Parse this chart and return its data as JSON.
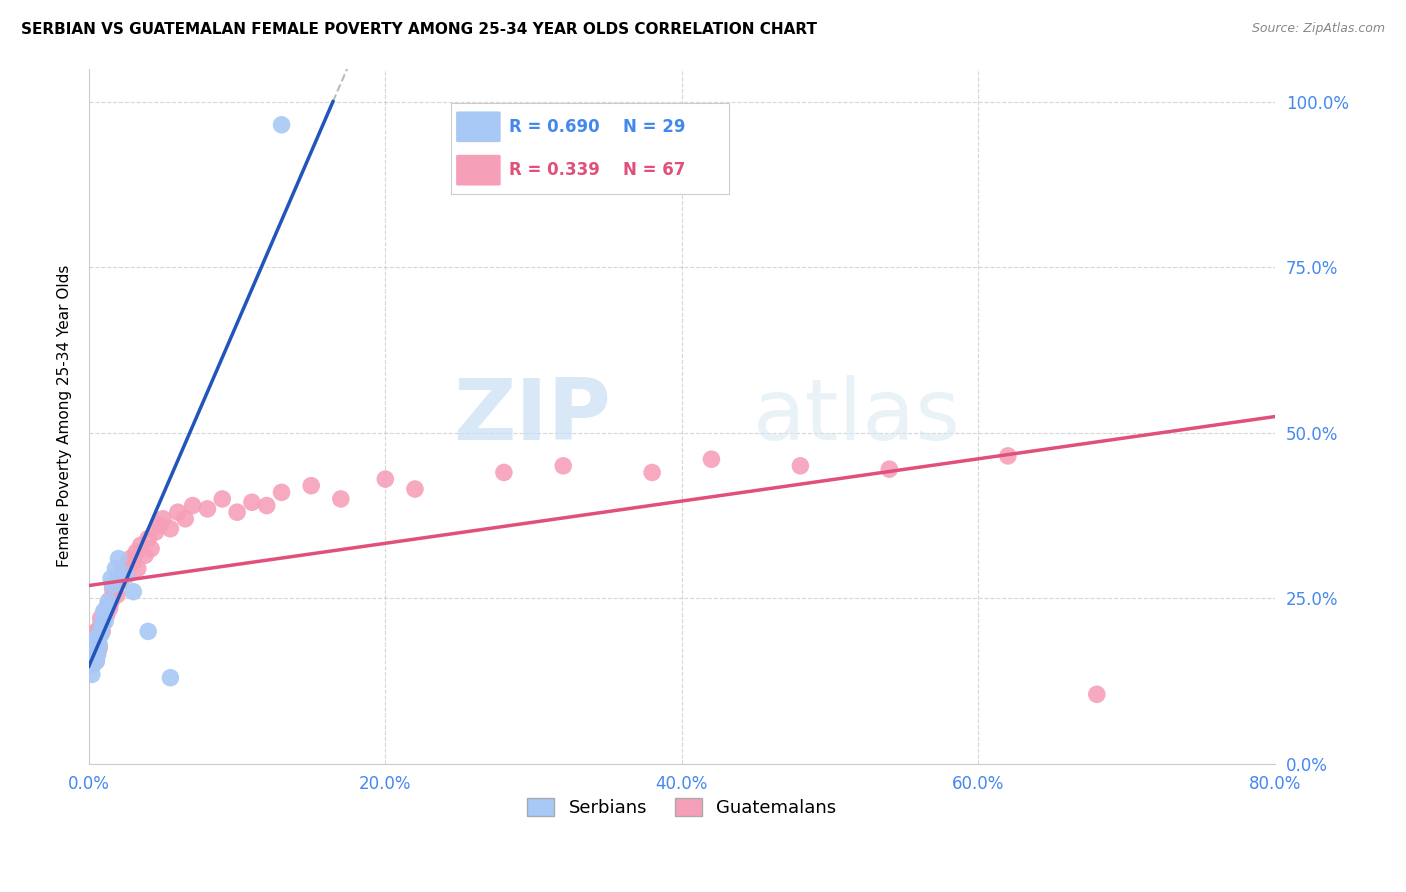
{
  "title": "SERBIAN VS GUATEMALAN FEMALE POVERTY AMONG 25-34 YEAR OLDS CORRELATION CHART",
  "source": "Source: ZipAtlas.com",
  "ylabel": "Female Poverty Among 25-34 Year Olds",
  "xlim": [
    0.0,
    0.8
  ],
  "ylim": [
    0.0,
    1.05
  ],
  "yticks": [
    0.0,
    0.25,
    0.5,
    0.75,
    1.0
  ],
  "xticks": [
    0.0,
    0.2,
    0.4,
    0.6,
    0.8
  ],
  "serbian_color": "#a8c8f5",
  "guatemalan_color": "#f5a0b8",
  "serbian_line_color": "#2255bb",
  "guatemalan_line_color": "#e0507a",
  "r_serbian": 0.69,
  "n_serbian": 29,
  "r_guatemalan": 0.339,
  "n_guatemalan": 67,
  "legend_text_serbian_color": "#4488ee",
  "legend_text_guatemalan_color": "#e0507a",
  "axis_label_color": "#4488ee",
  "watermark_zip": "ZIP",
  "watermark_atlas": "atlas",
  "serbians_x": [
    0.001,
    0.002,
    0.002,
    0.003,
    0.003,
    0.004,
    0.004,
    0.005,
    0.005,
    0.006,
    0.006,
    0.007,
    0.008,
    0.008,
    0.009,
    0.01,
    0.01,
    0.011,
    0.012,
    0.013,
    0.015,
    0.016,
    0.018,
    0.02,
    0.025,
    0.03,
    0.04,
    0.055,
    0.13
  ],
  "serbians_y": [
    0.165,
    0.135,
    0.175,
    0.15,
    0.185,
    0.16,
    0.17,
    0.155,
    0.19,
    0.165,
    0.175,
    0.18,
    0.195,
    0.2,
    0.21,
    0.22,
    0.23,
    0.215,
    0.235,
    0.245,
    0.28,
    0.27,
    0.295,
    0.31,
    0.285,
    0.26,
    0.2,
    0.13,
    0.965
  ],
  "guatemalans_x": [
    0.001,
    0.002,
    0.002,
    0.003,
    0.003,
    0.004,
    0.004,
    0.005,
    0.005,
    0.006,
    0.006,
    0.007,
    0.007,
    0.008,
    0.008,
    0.009,
    0.01,
    0.01,
    0.011,
    0.012,
    0.013,
    0.014,
    0.015,
    0.015,
    0.016,
    0.017,
    0.018,
    0.019,
    0.02,
    0.021,
    0.022,
    0.023,
    0.025,
    0.026,
    0.028,
    0.03,
    0.032,
    0.033,
    0.035,
    0.038,
    0.04,
    0.042,
    0.045,
    0.048,
    0.05,
    0.055,
    0.06,
    0.065,
    0.07,
    0.08,
    0.09,
    0.1,
    0.11,
    0.12,
    0.13,
    0.15,
    0.17,
    0.2,
    0.22,
    0.28,
    0.32,
    0.38,
    0.42,
    0.48,
    0.54,
    0.62,
    0.68
  ],
  "guatemalans_y": [
    0.18,
    0.165,
    0.195,
    0.17,
    0.185,
    0.175,
    0.19,
    0.155,
    0.2,
    0.17,
    0.185,
    0.195,
    0.175,
    0.21,
    0.22,
    0.2,
    0.225,
    0.215,
    0.23,
    0.225,
    0.24,
    0.235,
    0.25,
    0.245,
    0.265,
    0.26,
    0.27,
    0.255,
    0.28,
    0.275,
    0.285,
    0.295,
    0.3,
    0.285,
    0.31,
    0.305,
    0.32,
    0.295,
    0.33,
    0.315,
    0.34,
    0.325,
    0.35,
    0.36,
    0.37,
    0.355,
    0.38,
    0.37,
    0.39,
    0.385,
    0.4,
    0.38,
    0.395,
    0.39,
    0.41,
    0.42,
    0.4,
    0.43,
    0.415,
    0.44,
    0.45,
    0.44,
    0.46,
    0.45,
    0.445,
    0.465,
    0.105
  ]
}
